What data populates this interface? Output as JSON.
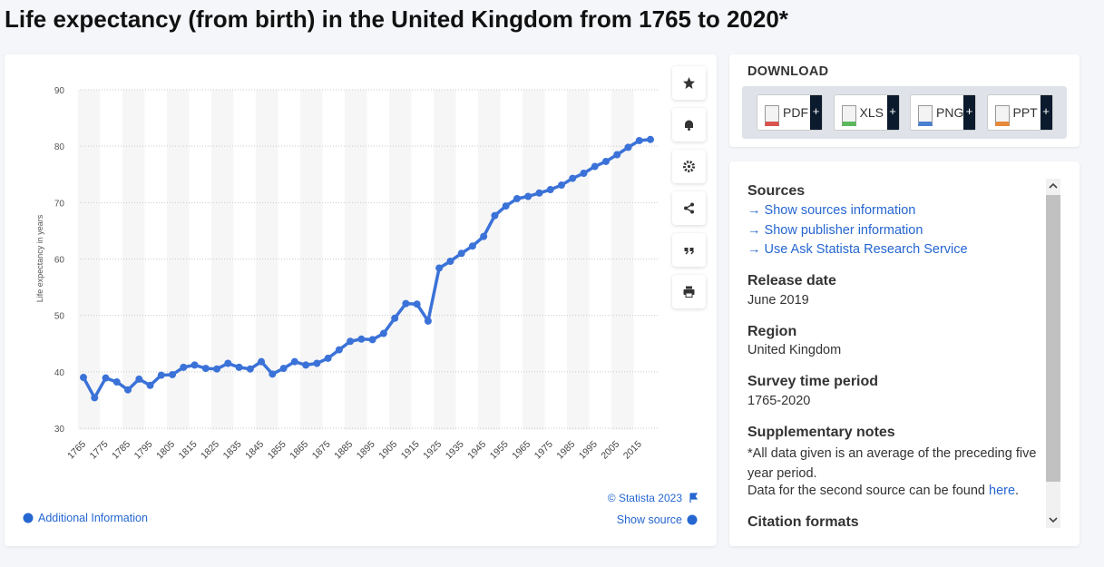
{
  "title": "Life expectancy (from birth) in the United Kingdom from 1765 to 2020*",
  "chart_data": {
    "type": "line",
    "y_label": "Life expectancy in years",
    "x": [
      1765,
      1770,
      1775,
      1780,
      1785,
      1790,
      1795,
      1800,
      1805,
      1810,
      1815,
      1820,
      1825,
      1830,
      1835,
      1840,
      1845,
      1850,
      1855,
      1860,
      1865,
      1870,
      1875,
      1880,
      1885,
      1890,
      1895,
      1900,
      1905,
      1910,
      1915,
      1920,
      1925,
      1930,
      1935,
      1940,
      1945,
      1950,
      1955,
      1960,
      1965,
      1970,
      1975,
      1980,
      1985,
      1990,
      1995,
      2000,
      2005,
      2010,
      2015,
      2020
    ],
    "values": [
      39.0,
      35.4,
      38.9,
      38.2,
      36.8,
      38.7,
      37.6,
      39.4,
      39.5,
      40.8,
      41.2,
      40.6,
      40.5,
      41.5,
      40.8,
      40.5,
      41.8,
      39.6,
      40.6,
      41.8,
      41.2,
      41.5,
      42.4,
      43.9,
      45.4,
      45.8,
      45.7,
      46.8,
      49.5,
      52.1,
      52.0,
      49.0,
      58.4,
      59.6,
      61.0,
      62.3,
      64.0,
      67.7,
      69.4,
      70.7,
      71.1,
      71.7,
      72.3,
      73.1,
      74.3,
      75.2,
      76.4,
      77.3,
      78.5,
      79.8,
      81.0,
      81.2
    ],
    "color": "#3b72d8",
    "xlim": [
      1765,
      2020
    ],
    "xticks": [
      1765,
      1775,
      1785,
      1795,
      1805,
      1815,
      1825,
      1835,
      1845,
      1855,
      1865,
      1875,
      1885,
      1895,
      1905,
      1915,
      1925,
      1935,
      1945,
      1955,
      1965,
      1975,
      1985,
      1995,
      2005,
      2015
    ],
    "ylim": [
      30,
      90
    ],
    "yticks": [
      30,
      40,
      50,
      60,
      70,
      80,
      90
    ],
    "grid": true,
    "copyright": "© Statista 2023"
  },
  "links": {
    "additional_information": "Additional Information",
    "show_source": "Show source"
  },
  "download": {
    "title": "DOWNLOAD",
    "formats": [
      "PDF",
      "XLS",
      "PNG",
      "PPT"
    ],
    "plus": "+"
  },
  "details": {
    "sources": {
      "label": "Sources",
      "links": [
        "Show sources information",
        "Show publisher information",
        "Use Ask Statista Research Service"
      ]
    },
    "release_date": {
      "label": "Release date",
      "value": "June 2019"
    },
    "region": {
      "label": "Region",
      "value": "United Kingdom"
    },
    "survey_time_period": {
      "label": "Survey time period",
      "value": "1765-2020"
    },
    "supplementary_notes": {
      "label": "Supplementary notes",
      "note": "*All data given is an average of the preceding five year period.",
      "source_note": [
        "Data for the second source can be found ",
        "here",
        "."
      ]
    },
    "citation_formats": {
      "label": "Citation formats"
    }
  }
}
